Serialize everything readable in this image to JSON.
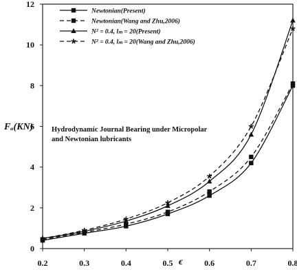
{
  "chart_data": {
    "type": "line",
    "title": "",
    "xlabel": "ϵ",
    "ylabel": "Fₐ(KN)",
    "xlim": [
      0.2,
      0.8
    ],
    "ylim": [
      0,
      12
    ],
    "x_ticks": [
      "0.2",
      "0.3",
      "0.4",
      "0.5",
      "0.6",
      "0.7",
      "0.8"
    ],
    "y_ticks": [
      "0",
      "2",
      "4",
      "6",
      "8",
      "10",
      "12"
    ],
    "grid": false,
    "legend_position": "top-left",
    "annotation_lines": [
      "Hydrodynamic Journal Bearing under Micropolar",
      "and Newtonian lubricants"
    ],
    "x": [
      0.2,
      0.3,
      0.4,
      0.5,
      0.6,
      0.7,
      0.8
    ],
    "series": [
      {
        "name": "Newtonian(Present)",
        "marker": "square",
        "line": "solid",
        "values": [
          0.4,
          0.75,
          1.1,
          1.7,
          2.6,
          4.2,
          8.0
        ]
      },
      {
        "name": "Newtonian(Wang and Zhu,2006)",
        "marker": "square",
        "line": "dashed",
        "values": [
          0.45,
          0.8,
          1.2,
          1.8,
          2.8,
          4.5,
          8.1
        ]
      },
      {
        "name": "N² = 0.4, lₘ = 20(Present)",
        "marker": "triangle",
        "line": "solid",
        "values": [
          0.5,
          0.85,
          1.35,
          2.1,
          3.3,
          5.6,
          11.2
        ]
      },
      {
        "name": "N² = 0.4, lₘ = 20(Wang and Zhu,2006)",
        "marker": "star",
        "line": "dashed",
        "values": [
          0.5,
          0.9,
          1.45,
          2.25,
          3.55,
          6.0,
          10.8
        ]
      }
    ]
  }
}
